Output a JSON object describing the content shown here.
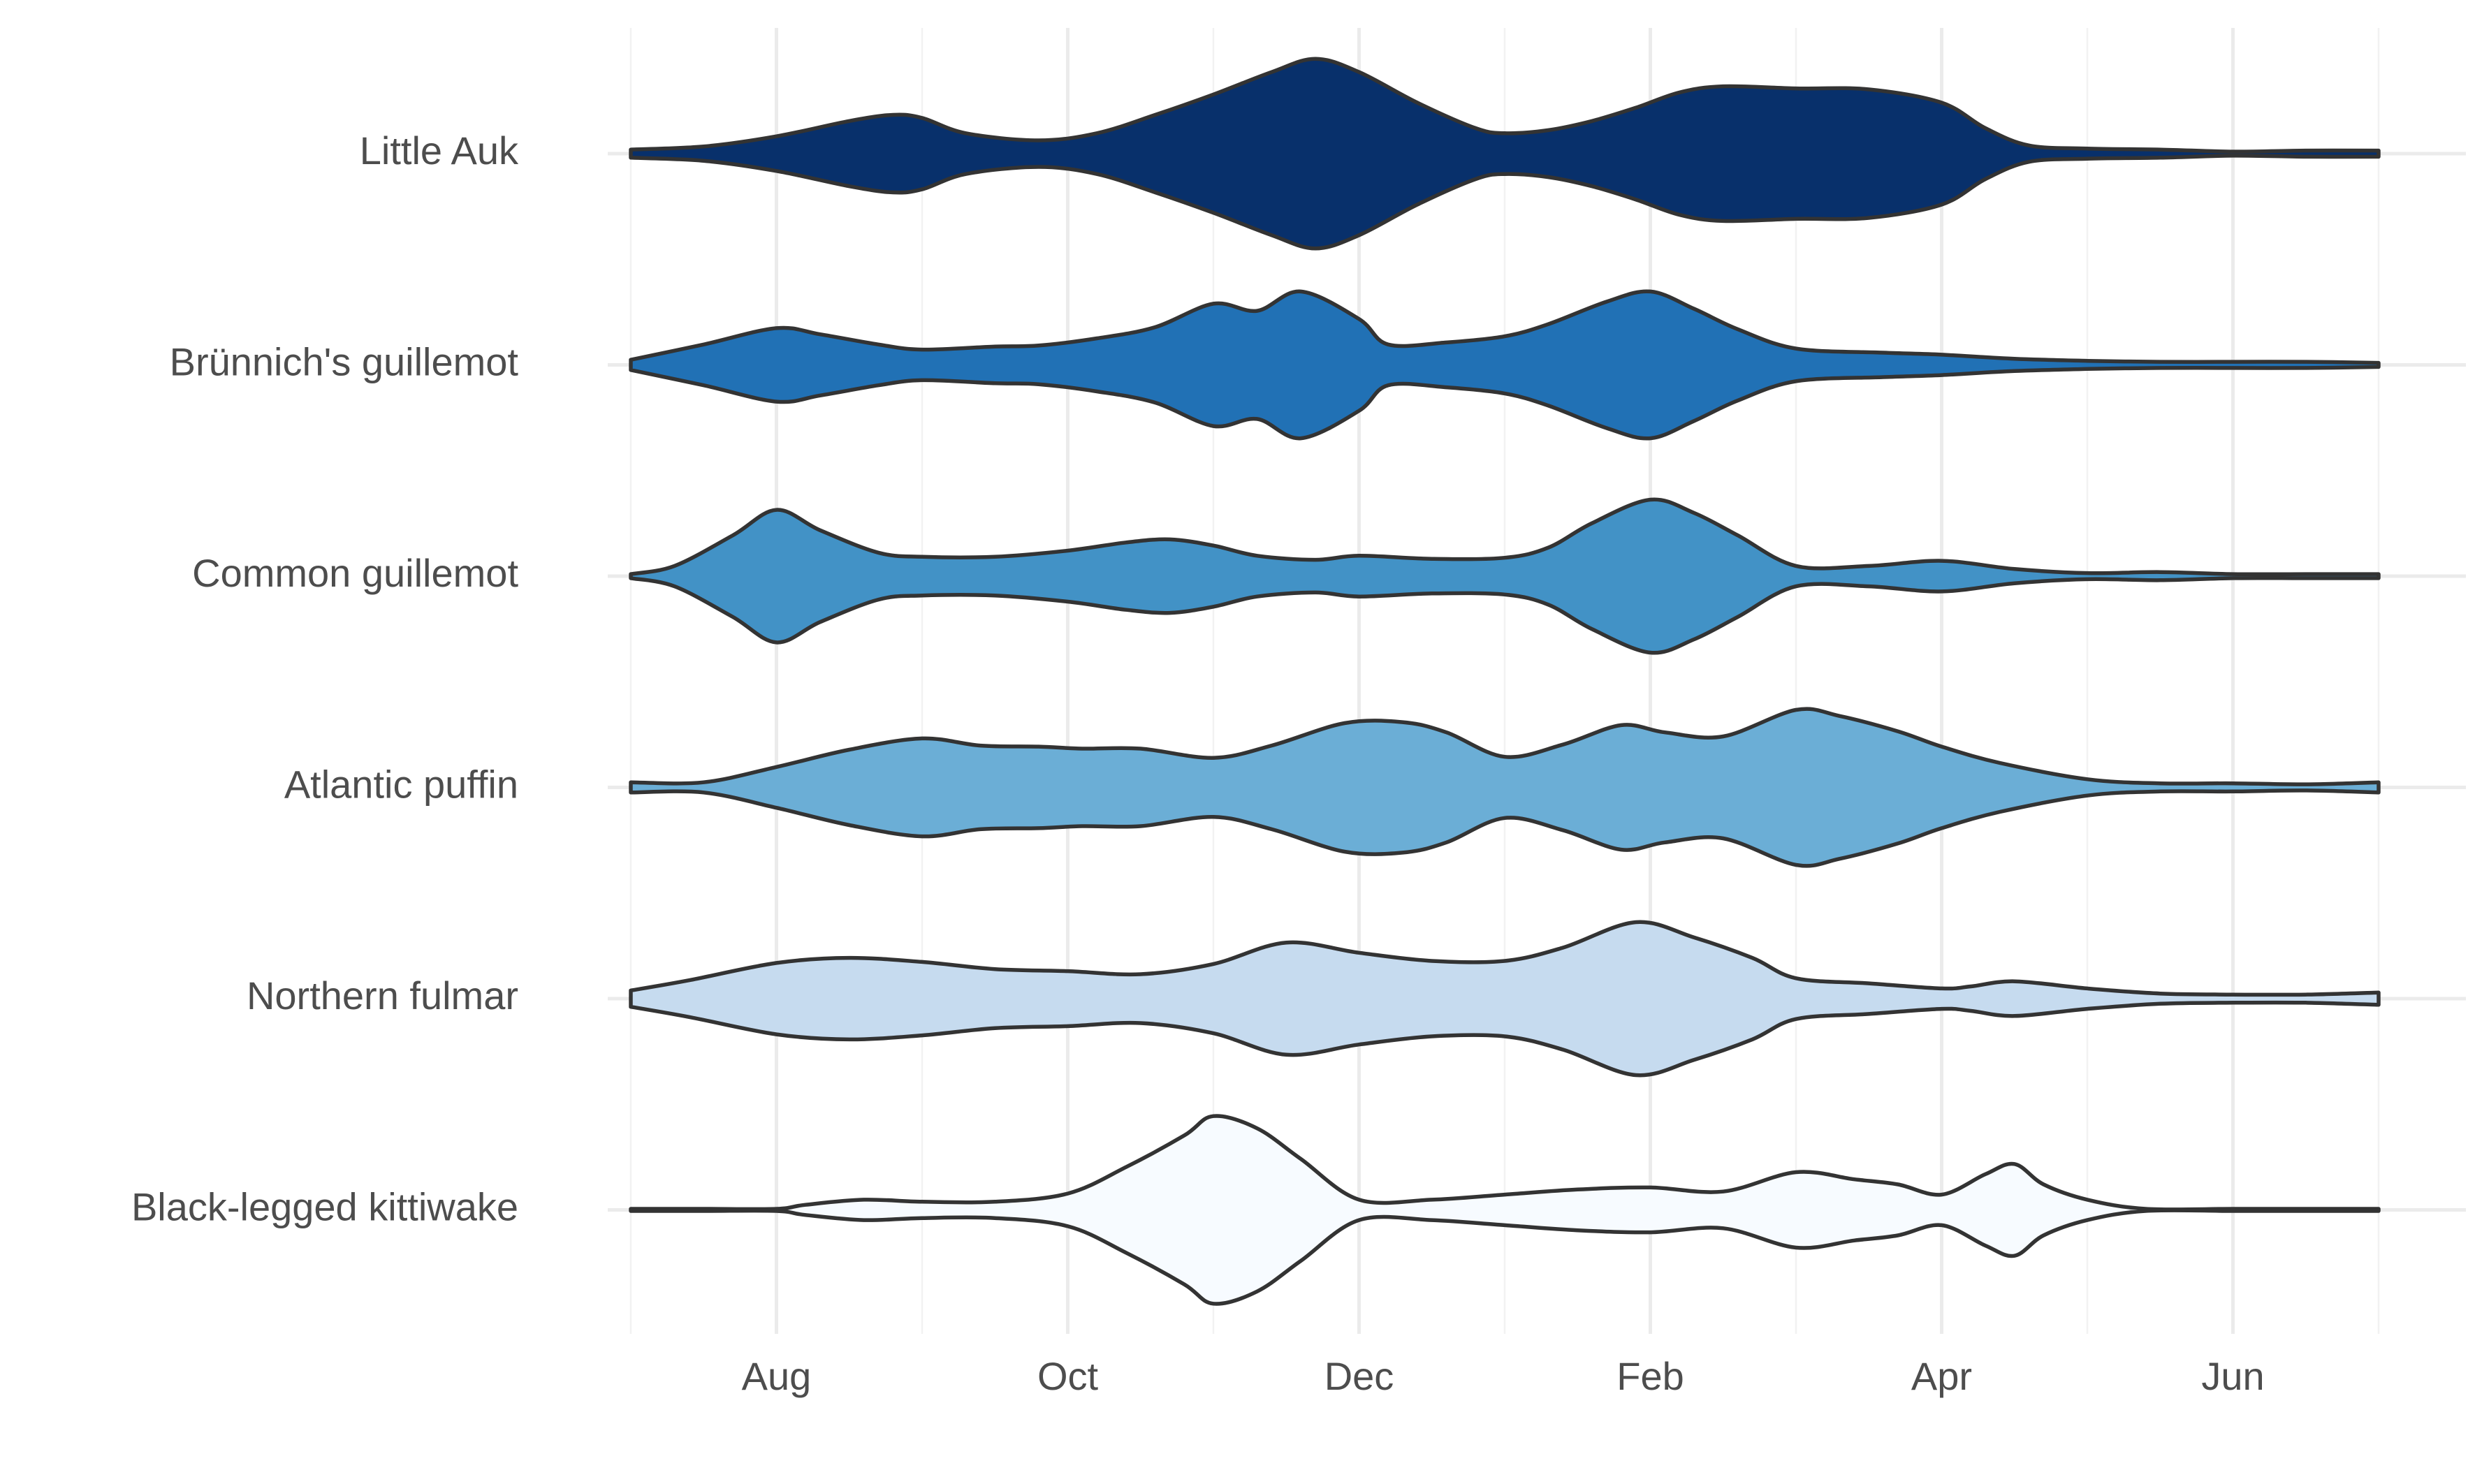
{
  "chart_data": {
    "type": "violin",
    "title": "",
    "xlabel": "",
    "ylabel": "",
    "orientation": "horizontal",
    "grid": true,
    "legend": "none",
    "x_axis_unit": "month",
    "x_ticks": [
      {
        "label": "Aug",
        "value": 1
      },
      {
        "label": "Oct",
        "value": 3
      },
      {
        "label": "Dec",
        "value": 5
      },
      {
        "label": "Feb",
        "value": 7
      },
      {
        "label": "Apr",
        "value": 9
      },
      {
        "label": "Jun",
        "value": 11
      }
    ],
    "xlim": [
      0,
      12
    ],
    "categories": [
      "Little Auk",
      "Brünnich's guillemot",
      "Common guillemot",
      "Atlantic puffin",
      "Northern fulmar",
      "Black-legged kittiwake"
    ],
    "series": [
      {
        "name": "Little Auk",
        "color": "#08306b",
        "x": [
          0,
          0.5,
          1.0,
          1.5,
          1.8,
          2.0,
          2.3,
          2.8,
          3.2,
          3.6,
          4.0,
          4.4,
          4.7,
          5.0,
          5.4,
          5.8,
          6.0,
          6.3,
          6.6,
          6.9,
          7.2,
          7.5,
          8.0,
          8.5,
          9.0,
          9.3,
          9.6,
          10.0,
          10.5,
          11.0,
          11.5,
          12.0
        ],
        "density": [
          0.04,
          0.07,
          0.17,
          0.32,
          0.38,
          0.35,
          0.2,
          0.13,
          0.2,
          0.38,
          0.58,
          0.8,
          0.93,
          0.8,
          0.5,
          0.25,
          0.2,
          0.23,
          0.32,
          0.45,
          0.6,
          0.66,
          0.64,
          0.63,
          0.5,
          0.25,
          0.08,
          0.05,
          0.04,
          0.02,
          0.03,
          0.03
        ]
      },
      {
        "name": "Brünnich's guillemot",
        "color": "#2171b5",
        "x": [
          0,
          0.5,
          1.0,
          1.3,
          1.7,
          2.0,
          2.5,
          2.8,
          3.2,
          3.6,
          4.0,
          4.3,
          4.6,
          5.0,
          5.2,
          5.6,
          6.0,
          6.3,
          6.7,
          7.0,
          7.3,
          7.6,
          8.0,
          8.6,
          9.0,
          9.5,
          10.0,
          10.5,
          11.0,
          11.5,
          12.0
        ],
        "density": [
          0.05,
          0.2,
          0.36,
          0.3,
          0.2,
          0.15,
          0.18,
          0.19,
          0.26,
          0.37,
          0.6,
          0.53,
          0.72,
          0.45,
          0.2,
          0.22,
          0.28,
          0.4,
          0.62,
          0.72,
          0.55,
          0.35,
          0.16,
          0.12,
          0.1,
          0.06,
          0.04,
          0.03,
          0.03,
          0.03,
          0.02
        ]
      },
      {
        "name": "Common guillemot",
        "color": "#4292c6",
        "x": [
          0,
          0.3,
          0.7,
          1.0,
          1.3,
          1.7,
          2.0,
          2.5,
          3.0,
          3.4,
          3.7,
          4.0,
          4.3,
          4.7,
          5.0,
          5.5,
          6.0,
          6.3,
          6.6,
          7.0,
          7.3,
          7.6,
          8.0,
          8.5,
          9.0,
          9.5,
          10.0,
          10.5,
          11.0,
          11.5,
          12.0
        ],
        "density": [
          0.02,
          0.1,
          0.4,
          0.65,
          0.45,
          0.23,
          0.19,
          0.19,
          0.25,
          0.33,
          0.36,
          0.3,
          0.2,
          0.16,
          0.2,
          0.17,
          0.18,
          0.28,
          0.52,
          0.75,
          0.62,
          0.4,
          0.1,
          0.1,
          0.15,
          0.07,
          0.03,
          0.04,
          0.02,
          0.02,
          0.02
        ]
      },
      {
        "name": "Atlantic puffin",
        "color": "#6baed6",
        "x": [
          0,
          0.5,
          1.0,
          1.5,
          2.0,
          2.4,
          2.8,
          3.1,
          3.5,
          4.0,
          4.4,
          4.9,
          5.3,
          5.6,
          6.0,
          6.4,
          6.8,
          7.1,
          7.5,
          8.0,
          8.3,
          8.7,
          9.0,
          9.4,
          10.0,
          10.5,
          11.0,
          11.5,
          12.0
        ],
        "density": [
          0.05,
          0.05,
          0.2,
          0.37,
          0.48,
          0.41,
          0.4,
          0.38,
          0.38,
          0.29,
          0.41,
          0.63,
          0.64,
          0.54,
          0.3,
          0.42,
          0.61,
          0.54,
          0.5,
          0.76,
          0.7,
          0.55,
          0.4,
          0.24,
          0.08,
          0.04,
          0.04,
          0.03,
          0.05
        ]
      },
      {
        "name": "Northern fulmar",
        "color": "#c6dbef",
        "x": [
          0,
          0.4,
          1.0,
          1.5,
          2.0,
          2.5,
          3.0,
          3.5,
          4.0,
          4.5,
          5.0,
          5.5,
          6.0,
          6.4,
          6.9,
          7.3,
          7.7,
          8.0,
          8.5,
          9.0,
          9.2,
          9.5,
          10.0,
          10.5,
          11.0,
          11.5,
          12.0
        ],
        "density": [
          0.08,
          0.18,
          0.35,
          0.4,
          0.36,
          0.29,
          0.27,
          0.24,
          0.34,
          0.55,
          0.45,
          0.37,
          0.37,
          0.5,
          0.75,
          0.6,
          0.4,
          0.2,
          0.15,
          0.1,
          0.12,
          0.17,
          0.1,
          0.05,
          0.04,
          0.04,
          0.06
        ]
      },
      {
        "name": "Black-legged kittiwake",
        "color": "#f7fbff",
        "x": [
          0,
          0.5,
          1.0,
          1.2,
          1.6,
          2.0,
          2.5,
          3.0,
          3.4,
          3.8,
          4.0,
          4.3,
          4.6,
          5.0,
          5.5,
          6.0,
          6.5,
          7.0,
          7.5,
          8.0,
          8.4,
          8.7,
          9.0,
          9.3,
          9.5,
          9.7,
          10.0,
          10.4,
          11.0,
          11.5,
          12.0
        ],
        "density": [
          0.01,
          0.01,
          0.01,
          0.05,
          0.1,
          0.08,
          0.08,
          0.16,
          0.42,
          0.73,
          0.92,
          0.8,
          0.5,
          0.1,
          0.1,
          0.15,
          0.2,
          0.22,
          0.18,
          0.37,
          0.3,
          0.25,
          0.15,
          0.35,
          0.45,
          0.25,
          0.1,
          0.01,
          0.01,
          0.01,
          0.01
        ]
      }
    ]
  }
}
